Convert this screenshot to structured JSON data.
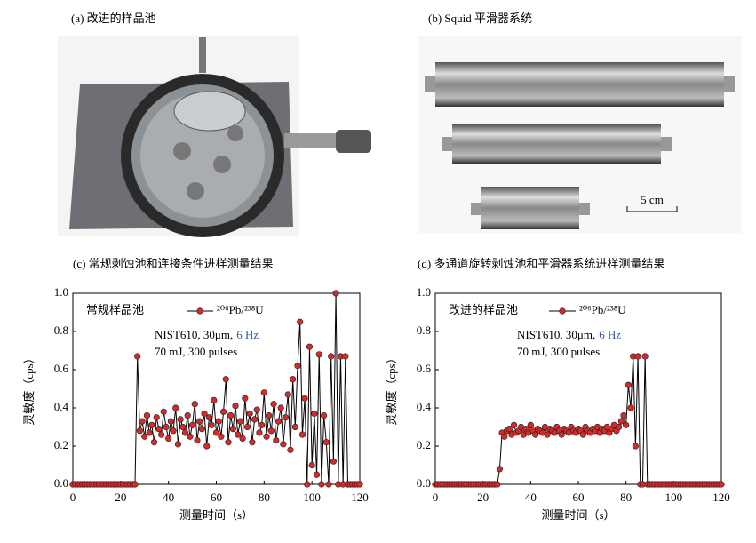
{
  "photos": [
    {
      "caption": "(a) 改进的样品池"
    },
    {
      "caption": "(b) Squid 平滑器系统",
      "scale_label": "5 cm"
    }
  ],
  "chart_data": [
    {
      "type": "line",
      "title": "(c) 常规剥蚀池和连接条件进样测量结果",
      "xlabel": "测量时间（s）",
      "ylabel": "灵敏度（cps）",
      "annotations": [
        "常规样品池",
        "NIST610, 30μm,",
        "6 Hz",
        "70 mJ, 300 pulses"
      ],
      "xlim": [
        0,
        120
      ],
      "xticks": [
        0,
        20,
        40,
        60,
        80,
        100,
        120
      ],
      "ylim": [
        0,
        1.0
      ],
      "yticks": [
        {
          "value": 0,
          "label": "0.0"
        },
        {
          "value": 0.2,
          "label": "0.2"
        },
        {
          "value": 0.4,
          "label": "0.4"
        },
        {
          "value": 0.6,
          "label": "0.6"
        },
        {
          "value": 0.8,
          "label": "0.8"
        },
        {
          "value": 1.0,
          "label": "1.0"
        }
      ],
      "x": [
        0,
        1,
        2,
        3,
        4,
        5,
        6,
        7,
        8,
        9,
        10,
        11,
        12,
        13,
        14,
        15,
        16,
        17,
        18,
        19,
        20,
        21,
        22,
        23,
        24,
        25,
        26,
        27,
        28,
        29,
        30,
        31,
        32,
        33,
        34,
        35,
        36,
        37,
        38,
        39,
        40,
        41,
        42,
        43,
        44,
        45,
        46,
        47,
        48,
        49,
        50,
        51,
        52,
        53,
        54,
        55,
        56,
        57,
        58,
        59,
        60,
        61,
        62,
        63,
        64,
        65,
        66,
        67,
        68,
        69,
        70,
        71,
        72,
        73,
        74,
        75,
        76,
        77,
        78,
        79,
        80,
        81,
        82,
        83,
        84,
        85,
        86,
        87,
        88,
        89,
        90,
        91,
        92,
        93,
        94,
        95,
        96,
        97,
        98,
        99,
        100,
        101,
        102,
        103,
        104,
        105,
        106,
        107,
        108,
        109,
        110,
        111,
        112,
        113,
        114,
        115,
        116,
        117,
        118,
        119,
        120
      ],
      "series": [
        {
          "name": "²⁰⁶Pb/²³⁸U",
          "color": "#d42a2a",
          "line_color": "#000000",
          "values": [
            0,
            0,
            0,
            0,
            0,
            0,
            0,
            0,
            0,
            0,
            0,
            0,
            0,
            0,
            0,
            0,
            0,
            0,
            0,
            0,
            0,
            0,
            0,
            0,
            0,
            0,
            0,
            0.67,
            0.28,
            0.33,
            0.25,
            0.36,
            0.27,
            0.31,
            0.22,
            0.35,
            0.29,
            0.26,
            0.38,
            0.3,
            0.24,
            0.33,
            0.28,
            0.4,
            0.21,
            0.34,
            0.3,
            0.27,
            0.36,
            0.25,
            0.31,
            0.42,
            0.23,
            0.33,
            0.29,
            0.37,
            0.2,
            0.35,
            0.31,
            0.44,
            0.27,
            0.33,
            0.25,
            0.38,
            0.55,
            0.22,
            0.36,
            0.29,
            0.41,
            0.26,
            0.33,
            0.24,
            0.45,
            0.3,
            0.37,
            0.22,
            0.34,
            0.39,
            0.27,
            0.31,
            0.48,
            0.25,
            0.36,
            0.28,
            0.42,
            0.23,
            0.33,
            0.4,
            0.21,
            0.35,
            0.47,
            0.18,
            0.55,
            0.3,
            0.62,
            0.85,
            0.26,
            0.45,
            0,
            0.72,
            0.1,
            0.37,
            0.05,
            0.68,
            0,
            0.36,
            0.22,
            0,
            0.67,
            0.12,
            1.0,
            0,
            0.67,
            0,
            0.67,
            0,
            0,
            0,
            0,
            0,
            0
          ]
        }
      ]
    },
    {
      "type": "line",
      "title": "(d) 多通道旋转剥蚀池和平滑器系统进样测量结果",
      "xlabel": "测量时间（s）",
      "ylabel": "灵敏度（cps）",
      "annotations": [
        "改进的样品池",
        "NIST610, 30μm,",
        "6 Hz",
        "70 mJ, 300 pulses"
      ],
      "xlim": [
        0,
        120
      ],
      "xticks": [
        0,
        20,
        40,
        60,
        80,
        100,
        120
      ],
      "ylim": [
        0,
        1.0
      ],
      "yticks": [
        {
          "value": 0,
          "label": "0.0"
        },
        {
          "value": 0.2,
          "label": "0.2"
        },
        {
          "value": 0.4,
          "label": "0.4"
        },
        {
          "value": 0.6,
          "label": "0.6"
        },
        {
          "value": 0.8,
          "label": "0.8"
        },
        {
          "value": 1.0,
          "label": "1.0"
        }
      ],
      "x": [
        0,
        1,
        2,
        3,
        4,
        5,
        6,
        7,
        8,
        9,
        10,
        11,
        12,
        13,
        14,
        15,
        16,
        17,
        18,
        19,
        20,
        21,
        22,
        23,
        24,
        25,
        26,
        27,
        28,
        29,
        30,
        31,
        32,
        33,
        34,
        35,
        36,
        37,
        38,
        39,
        40,
        41,
        42,
        43,
        44,
        45,
        46,
        47,
        48,
        49,
        50,
        51,
        52,
        53,
        54,
        55,
        56,
        57,
        58,
        59,
        60,
        61,
        62,
        63,
        64,
        65,
        66,
        67,
        68,
        69,
        70,
        71,
        72,
        73,
        74,
        75,
        76,
        77,
        78,
        79,
        80,
        81,
        82,
        83,
        84,
        85,
        86,
        87,
        88,
        89,
        90,
        91,
        92,
        93,
        94,
        95,
        96,
        97,
        98,
        99,
        100,
        101,
        102,
        103,
        104,
        105,
        106,
        107,
        108,
        109,
        110,
        111,
        112,
        113,
        114,
        115,
        116,
        117,
        118,
        119,
        120
      ],
      "series": [
        {
          "name": "²⁰⁶Pb/²³⁸U",
          "color": "#d42a2a",
          "line_color": "#000000",
          "values": [
            0,
            0,
            0,
            0,
            0,
            0,
            0,
            0,
            0,
            0,
            0,
            0,
            0,
            0,
            0,
            0,
            0,
            0,
            0,
            0,
            0,
            0,
            0,
            0,
            0,
            0,
            0,
            0.08,
            0.27,
            0.25,
            0.28,
            0.29,
            0.26,
            0.31,
            0.27,
            0.28,
            0.3,
            0.26,
            0.29,
            0.27,
            0.31,
            0.28,
            0.26,
            0.29,
            0.28,
            0.27,
            0.3,
            0.26,
            0.29,
            0.28,
            0.27,
            0.3,
            0.28,
            0.26,
            0.29,
            0.28,
            0.27,
            0.3,
            0.28,
            0.27,
            0.29,
            0.28,
            0.26,
            0.3,
            0.28,
            0.27,
            0.29,
            0.28,
            0.3,
            0.27,
            0.29,
            0.28,
            0.3,
            0.27,
            0.29,
            0.31,
            0.28,
            0.3,
            0.33,
            0.36,
            0.31,
            0.52,
            0.4,
            0.67,
            0.2,
            0.67,
            0,
            0,
            0.67,
            0,
            0,
            0,
            0,
            0,
            0,
            0,
            0,
            0,
            0,
            0,
            0,
            0,
            0,
            0,
            0,
            0,
            0,
            0,
            0,
            0,
            0,
            0,
            0,
            0,
            0,
            0,
            0,
            0,
            0,
            0,
            0
          ]
        }
      ]
    }
  ]
}
